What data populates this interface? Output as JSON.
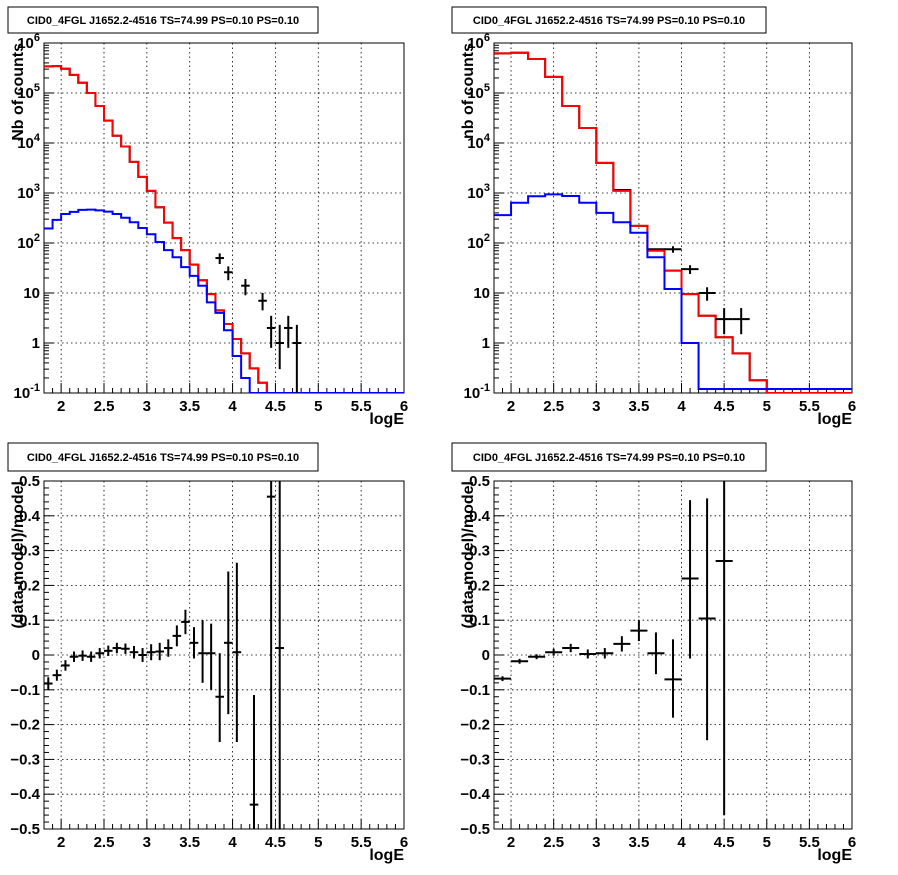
{
  "window": {
    "title": ""
  },
  "chart_data": [
    {
      "type": "line",
      "title": "CID0_4FGL J1652.2-4516 TS=74.99 PS=0.10 PS=0.10",
      "xlabel": "logE",
      "ylabel": "Nb of counts",
      "xlim": [
        1.8,
        6.0
      ],
      "ylim": [
        0.1,
        1000000
      ],
      "yscale": "log",
      "grid": true,
      "x_ticks": [
        "2",
        "2.5",
        "3",
        "3.5",
        "4",
        "4.5",
        "5",
        "5.5",
        "6"
      ],
      "y_ticks": [
        "10-1",
        "1",
        "10",
        "102",
        "103",
        "104",
        "105",
        "106"
      ],
      "bin_edges": [
        1.8,
        1.9,
        2.0,
        2.1,
        2.2,
        2.3,
        2.4,
        2.5,
        2.6,
        2.7,
        2.8,
        2.9,
        3.0,
        3.1,
        3.2,
        3.3,
        3.4,
        3.5,
        3.6,
        3.7,
        3.8,
        3.9,
        4.0,
        4.1,
        4.2,
        4.3,
        4.4,
        4.5,
        4.6,
        4.7,
        4.8,
        4.9,
        5.0,
        5.1,
        5.2,
        5.3,
        5.4,
        5.5,
        5.6,
        5.7,
        5.8,
        5.9,
        6.0
      ],
      "series": [
        {
          "color": "#000000",
          "kind": "step",
          "values": [
            340000,
            345000,
            305000,
            230000,
            160000,
            100000,
            55000,
            28000,
            14000,
            8500,
            4200,
            2100,
            1100,
            520,
            255,
            125,
            72,
            37,
            18,
            9.5,
            4.5,
            2.4,
            1.2,
            0.62,
            0.31,
            0.16,
            0.08,
            0.08,
            0.08,
            0.08,
            0.08,
            0.08,
            0.08,
            0.08,
            0.08,
            0.08,
            0.08,
            0.08,
            0.08,
            0.08,
            0.08,
            0.08
          ]
        },
        {
          "color": "#ff0000",
          "kind": "step",
          "values": [
            340000,
            345000,
            305000,
            230000,
            160000,
            100000,
            55000,
            28000,
            14000,
            8500,
            4200,
            2100,
            1100,
            520,
            255,
            125,
            72,
            37,
            18,
            9.5,
            4.5,
            2.4,
            1.2,
            0.62,
            0.31,
            0.16,
            0.08,
            0.08,
            0.08,
            0.08,
            0.08,
            0.08,
            0.08,
            0.08,
            0.08,
            0.08,
            0.08,
            0.08,
            0.08,
            0.08,
            0.08,
            0.08
          ]
        },
        {
          "color": "#0000ff",
          "kind": "step",
          "values": [
            195,
            290,
            380,
            420,
            460,
            465,
            450,
            425,
            380,
            320,
            260,
            200,
            150,
            105,
            72,
            52,
            33,
            22,
            14,
            6.5,
            4.0,
            1.8,
            0.55,
            0.2,
            0.08,
            0.08,
            0.08,
            0.08,
            0.08,
            0.08,
            0.08,
            0.08,
            0.08,
            0.08,
            0.08,
            0.08,
            0.08,
            0.08,
            0.08,
            0.08,
            0.08,
            0.08
          ]
        },
        {
          "color": "#000000",
          "kind": "errorbars",
          "points": [
            {
              "x": 3.85,
              "y": 50,
              "xerr": 0.05,
              "ylo": 38,
              "yhi": 62
            },
            {
              "x": 3.95,
              "y": 26,
              "xerr": 0.05,
              "ylo": 18,
              "yhi": 34
            },
            {
              "x": 4.15,
              "y": 14,
              "xerr": 0.05,
              "ylo": 9,
              "yhi": 19
            },
            {
              "x": 4.35,
              "y": 7,
              "xerr": 0.05,
              "ylo": 4.5,
              "yhi": 10
            },
            {
              "x": 4.45,
              "y": 2,
              "xerr": 0.05,
              "ylo": 0.8,
              "yhi": 3.5
            },
            {
              "x": 4.55,
              "y": 1,
              "xerr": 0.05,
              "ylo": 0.3,
              "yhi": 2.3
            },
            {
              "x": 4.65,
              "y": 2,
              "xerr": 0.05,
              "ylo": 0.8,
              "yhi": 3.5
            },
            {
              "x": 4.75,
              "y": 1,
              "xerr": 0.05,
              "ylo": 0.1,
              "yhi": 2.3
            }
          ]
        }
      ]
    },
    {
      "type": "line",
      "title": "CID0_4FGL J1652.2-4516 TS=74.99 PS=0.10 PS=0.10",
      "xlabel": "logE",
      "ylabel": "nb of counts",
      "xlim": [
        1.8,
        6.0
      ],
      "ylim": [
        0.1,
        1000000
      ],
      "yscale": "log",
      "grid": true,
      "x_ticks": [
        "2",
        "2.5",
        "3",
        "3.5",
        "4",
        "4.5",
        "5",
        "5.5",
        "6"
      ],
      "y_ticks": [
        "10-1",
        "1",
        "10",
        "102",
        "103",
        "104",
        "105",
        "106"
      ],
      "bin_edges": [
        1.8,
        2.0,
        2.2,
        2.4,
        2.6,
        2.8,
        3.0,
        3.2,
        3.4,
        3.6,
        3.8,
        4.0,
        4.2,
        4.4,
        4.6,
        4.8,
        5.0,
        5.2,
        5.4,
        5.6,
        5.8,
        6.0
      ],
      "series": [
        {
          "color": "#000000",
          "kind": "step",
          "values": [
            620000,
            640000,
            480000,
            210000,
            55000,
            20000,
            4000,
            1150,
            220,
            75,
            28,
            9.5,
            3.5,
            1.3,
            0.62,
            0.18,
            0.08,
            0.08,
            0.08,
            0.08,
            0.08
          ]
        },
        {
          "color": "#ff0000",
          "kind": "step",
          "values": [
            620000,
            640000,
            480000,
            210000,
            55000,
            20000,
            4000,
            1100,
            220,
            70,
            28,
            9.5,
            3.5,
            1.3,
            0.62,
            0.18,
            0.08,
            0.08,
            0.08,
            0.08,
            0.08
          ]
        },
        {
          "color": "#0000ff",
          "kind": "step",
          "values": [
            360,
            640,
            860,
            940,
            870,
            640,
            400,
            260,
            160,
            52,
            12,
            1.0,
            0.12,
            0.12,
            0.12,
            0.12,
            0.12,
            0.12,
            0.12,
            0.12,
            0.12
          ]
        },
        {
          "color": "#000000",
          "kind": "errorbars",
          "points": [
            {
              "x": 3.9,
              "y": 75,
              "xerr": 0.1,
              "ylo": 64,
              "yhi": 86
            },
            {
              "x": 4.1,
              "y": 30,
              "xerr": 0.1,
              "ylo": 24,
              "yhi": 36
            },
            {
              "x": 4.3,
              "y": 10,
              "xerr": 0.1,
              "ylo": 7,
              "yhi": 13
            },
            {
              "x": 4.5,
              "y": 3,
              "xerr": 0.1,
              "ylo": 1.5,
              "yhi": 5
            },
            {
              "x": 4.7,
              "y": 3,
              "xerr": 0.1,
              "ylo": 1.5,
              "yhi": 5
            }
          ]
        }
      ]
    },
    {
      "type": "scatter",
      "title": "CID0_4FGL J1652.2-4516 TS=74.99 PS=0.10 PS=0.10",
      "xlabel": "logE",
      "ylabel": "(data-model)/model",
      "xlim": [
        1.8,
        6.0
      ],
      "ylim": [
        -0.5,
        0.5
      ],
      "grid": true,
      "x_ticks": [
        "2",
        "2.5",
        "3",
        "3.5",
        "4",
        "4.5",
        "5",
        "5.5",
        "6"
      ],
      "y_ticks": [
        "−0.5",
        "−0.4",
        "−0.3",
        "−0.2",
        "−0.1",
        "0",
        "0.1",
        "0.2",
        "0.3",
        "0.4",
        "0.5"
      ],
      "series": [
        {
          "color": "#000000",
          "points": [
            {
              "x": 1.85,
              "y": -0.082,
              "xerr": 0.05,
              "ylo": -0.1,
              "yhi": -0.064
            },
            {
              "x": 1.95,
              "y": -0.058,
              "xerr": 0.05,
              "ylo": -0.074,
              "yhi": -0.042
            },
            {
              "x": 2.05,
              "y": -0.03,
              "xerr": 0.05,
              "ylo": -0.045,
              "yhi": -0.015
            },
            {
              "x": 2.15,
              "y": -0.005,
              "xerr": 0.05,
              "ylo": -0.02,
              "yhi": 0.01
            },
            {
              "x": 2.25,
              "y": -0.002,
              "xerr": 0.05,
              "ylo": -0.017,
              "yhi": 0.013
            },
            {
              "x": 2.35,
              "y": -0.005,
              "xerr": 0.05,
              "ylo": -0.02,
              "yhi": 0.01
            },
            {
              "x": 2.45,
              "y": 0.005,
              "xerr": 0.05,
              "ylo": -0.01,
              "yhi": 0.02
            },
            {
              "x": 2.55,
              "y": 0.012,
              "xerr": 0.05,
              "ylo": -0.003,
              "yhi": 0.027
            },
            {
              "x": 2.65,
              "y": 0.02,
              "xerr": 0.05,
              "ylo": 0.005,
              "yhi": 0.035
            },
            {
              "x": 2.75,
              "y": 0.018,
              "xerr": 0.05,
              "ylo": 0.003,
              "yhi": 0.033
            },
            {
              "x": 2.85,
              "y": 0.008,
              "xerr": 0.05,
              "ylo": -0.01,
              "yhi": 0.026
            },
            {
              "x": 2.95,
              "y": 0.0,
              "xerr": 0.05,
              "ylo": -0.02,
              "yhi": 0.02
            },
            {
              "x": 3.05,
              "y": 0.008,
              "xerr": 0.05,
              "ylo": -0.015,
              "yhi": 0.031
            },
            {
              "x": 3.15,
              "y": 0.01,
              "xerr": 0.05,
              "ylo": -0.015,
              "yhi": 0.035
            },
            {
              "x": 3.25,
              "y": 0.02,
              "xerr": 0.05,
              "ylo": -0.005,
              "yhi": 0.045
            },
            {
              "x": 3.35,
              "y": 0.055,
              "xerr": 0.05,
              "ylo": 0.025,
              "yhi": 0.085
            },
            {
              "x": 3.45,
              "y": 0.095,
              "xerr": 0.05,
              "ylo": 0.06,
              "yhi": 0.13
            },
            {
              "x": 3.55,
              "y": 0.035,
              "xerr": 0.05,
              "ylo": -0.01,
              "yhi": 0.08
            },
            {
              "x": 3.65,
              "y": 0.005,
              "xerr": 0.05,
              "ylo": -0.08,
              "yhi": 0.1
            },
            {
              "x": 3.75,
              "y": 0.005,
              "xerr": 0.05,
              "ylo": -0.1,
              "yhi": 0.09
            },
            {
              "x": 3.85,
              "y": -0.12,
              "xerr": 0.05,
              "ylo": -0.25,
              "yhi": 0.005
            },
            {
              "x": 3.95,
              "y": 0.035,
              "xerr": 0.05,
              "ylo": -0.17,
              "yhi": 0.24
            },
            {
              "x": 4.05,
              "y": 0.008,
              "xerr": 0.05,
              "ylo": -0.25,
              "yhi": 0.265
            },
            {
              "x": 4.25,
              "y": -0.43,
              "xerr": 0.05,
              "ylo": -0.5,
              "yhi": -0.115
            },
            {
              "x": 4.45,
              "y": 0.455,
              "xerr": 0.05,
              "ylo": -0.5,
              "yhi": 0.5
            },
            {
              "x": 4.55,
              "y": 0.02,
              "xerr": 0.05,
              "ylo": -0.5,
              "yhi": 0.5
            }
          ]
        }
      ]
    },
    {
      "type": "scatter",
      "title": "CID0_4FGL J1652.2-4516 TS=74.99 PS=0.10 PS=0.10",
      "xlabel": "logE",
      "ylabel": "(data-model)/model",
      "xlim": [
        1.8,
        6.0
      ],
      "ylim": [
        -0.5,
        0.5
      ],
      "grid": true,
      "x_ticks": [
        "2",
        "2.5",
        "3",
        "3.5",
        "4",
        "4.5",
        "5",
        "5.5",
        "6"
      ],
      "y_ticks": [
        "−0.5",
        "−0.4",
        "−0.3",
        "−0.2",
        "−0.1",
        "0",
        "0.1",
        "0.2",
        "0.3",
        "0.4",
        "0.5"
      ],
      "series": [
        {
          "color": "#000000",
          "points": [
            {
              "x": 1.9,
              "y": -0.068,
              "xerr": 0.1,
              "ylo": -0.075,
              "yhi": -0.061
            },
            {
              "x": 2.1,
              "y": -0.018,
              "xerr": 0.1,
              "ylo": -0.025,
              "yhi": -0.011
            },
            {
              "x": 2.3,
              "y": -0.005,
              "xerr": 0.1,
              "ylo": -0.012,
              "yhi": 0.002
            },
            {
              "x": 2.5,
              "y": 0.008,
              "xerr": 0.1,
              "ylo": -0.002,
              "yhi": 0.018
            },
            {
              "x": 2.7,
              "y": 0.02,
              "xerr": 0.1,
              "ylo": 0.008,
              "yhi": 0.032
            },
            {
              "x": 2.9,
              "y": 0.003,
              "xerr": 0.1,
              "ylo": -0.01,
              "yhi": 0.016
            },
            {
              "x": 3.1,
              "y": 0.005,
              "xerr": 0.1,
              "ylo": -0.01,
              "yhi": 0.02
            },
            {
              "x": 3.3,
              "y": 0.032,
              "xerr": 0.1,
              "ylo": 0.01,
              "yhi": 0.054
            },
            {
              "x": 3.5,
              "y": 0.07,
              "xerr": 0.1,
              "ylo": 0.04,
              "yhi": 0.1
            },
            {
              "x": 3.7,
              "y": 0.005,
              "xerr": 0.1,
              "ylo": -0.055,
              "yhi": 0.065
            },
            {
              "x": 3.9,
              "y": -0.07,
              "xerr": 0.1,
              "ylo": -0.18,
              "yhi": 0.045
            },
            {
              "x": 4.1,
              "y": 0.22,
              "xerr": 0.1,
              "ylo": -0.01,
              "yhi": 0.445
            },
            {
              "x": 4.3,
              "y": 0.105,
              "xerr": 0.1,
              "ylo": -0.245,
              "yhi": 0.45
            },
            {
              "x": 4.5,
              "y": 0.27,
              "xerr": 0.1,
              "ylo": -0.46,
              "yhi": 0.5
            }
          ]
        }
      ]
    }
  ]
}
